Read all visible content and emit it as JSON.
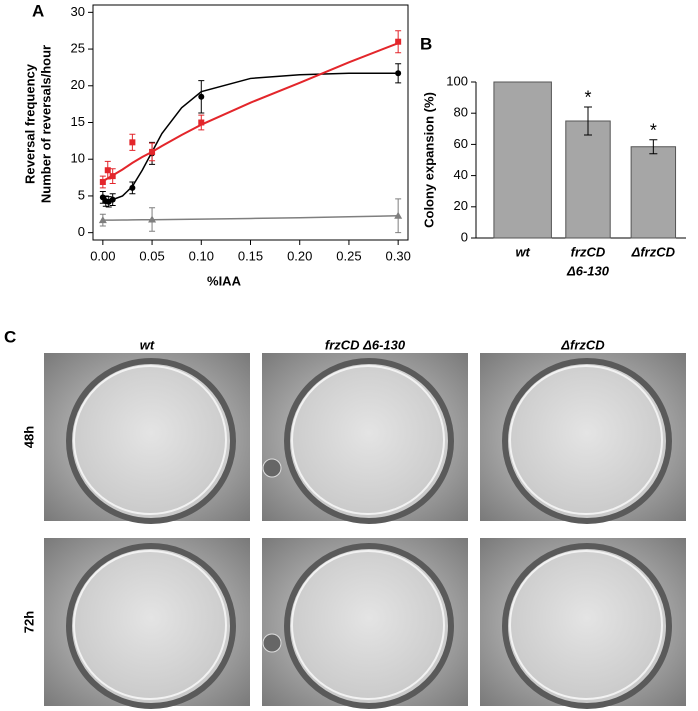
{
  "chart_data": [
    {
      "type": "scatter",
      "label": "A",
      "y_label": [
        "Reversal frequency",
        "Number of reversals/hour"
      ],
      "x_label": "%IAA",
      "xlim": [
        -0.01,
        0.31
      ],
      "xticks": [
        {
          "value": 0,
          "label": "0.00"
        },
        {
          "value": 0.05,
          "label": "0.05"
        },
        {
          "value": 0.1,
          "label": "0.10"
        },
        {
          "value": 0.15,
          "label": "0.15"
        },
        {
          "value": 0.2,
          "label": "0.20"
        },
        {
          "value": 0.25,
          "label": "0.25"
        },
        {
          "value": 0.3,
          "label": "0.30"
        }
      ],
      "ylim": [
        -1,
        31
      ],
      "yticks": [
        0,
        5,
        10,
        15,
        20,
        25,
        30
      ],
      "fit_x": [
        0,
        0.01,
        0.02,
        0.03,
        0.04,
        0.05,
        0.06,
        0.08,
        0.1,
        0.15,
        0.2,
        0.25,
        0.3
      ],
      "series": [
        {
          "color": "#000000",
          "marker": "circle",
          "x": [
            0,
            0.003,
            0.006,
            0.01,
            0.03,
            0.05,
            0.1,
            0.3
          ],
          "values": [
            4.8,
            4.3,
            4.2,
            4.5,
            6.1,
            10.8,
            18.5,
            21.7
          ],
          "errors": [
            0.8,
            0.7,
            0.7,
            0.8,
            0.8,
            1.5,
            2.2,
            1.3
          ],
          "fit": [
            4.4,
            4.5,
            5.0,
            6.3,
            8.5,
            11.0,
            13.5,
            17.0,
            19.2,
            21.0,
            21.5,
            21.7,
            21.7
          ]
        },
        {
          "color": "#e3262b",
          "marker": "square",
          "x": [
            0,
            0.005,
            0.01,
            0.03,
            0.05,
            0.1,
            0.3
          ],
          "values": [
            6.9,
            8.5,
            7.7,
            12.3,
            11.0,
            15.0,
            26.0
          ],
          "errors": [
            0.8,
            1.2,
            1.0,
            1.1,
            1.2,
            1.0,
            1.5
          ],
          "fit": [
            7.0,
            7.8,
            8.6,
            9.5,
            10.3,
            11.0,
            11.8,
            13.3,
            14.7,
            17.7,
            20.4,
            23.2,
            25.8
          ]
        },
        {
          "color": "#7f7f7f",
          "marker": "triangle",
          "x": [
            0,
            0.05,
            0.3
          ],
          "values": [
            1.7,
            1.8,
            2.3
          ],
          "errors": [
            0.8,
            1.6,
            2.3
          ],
          "fit": [
            1.7,
            1.71,
            1.72,
            1.74,
            1.75,
            1.76,
            1.78,
            1.81,
            1.84,
            1.93,
            2.03,
            2.17,
            2.3
          ]
        }
      ]
    },
    {
      "type": "bar",
      "label": "B",
      "y_label": "Colony expansion (%)",
      "categories": [
        [
          "wt"
        ],
        [
          "frzCD",
          "Δ6-130"
        ],
        [
          "ΔfrzCD"
        ]
      ],
      "values": [
        100,
        75,
        58.5
      ],
      "errors": [
        null,
        9,
        4.5
      ],
      "annotations": [
        null,
        "*",
        "*"
      ],
      "color": "#a6a6a6",
      "ylim": [
        0,
        100
      ],
      "yticks": [
        0,
        20,
        40,
        60,
        80,
        100
      ]
    }
  ],
  "image_grid": {
    "label": "C",
    "columns": [
      "wt",
      "frzCD Δ6-130",
      "ΔfrzCD"
    ],
    "rows": [
      "48h",
      "72h"
    ]
  }
}
